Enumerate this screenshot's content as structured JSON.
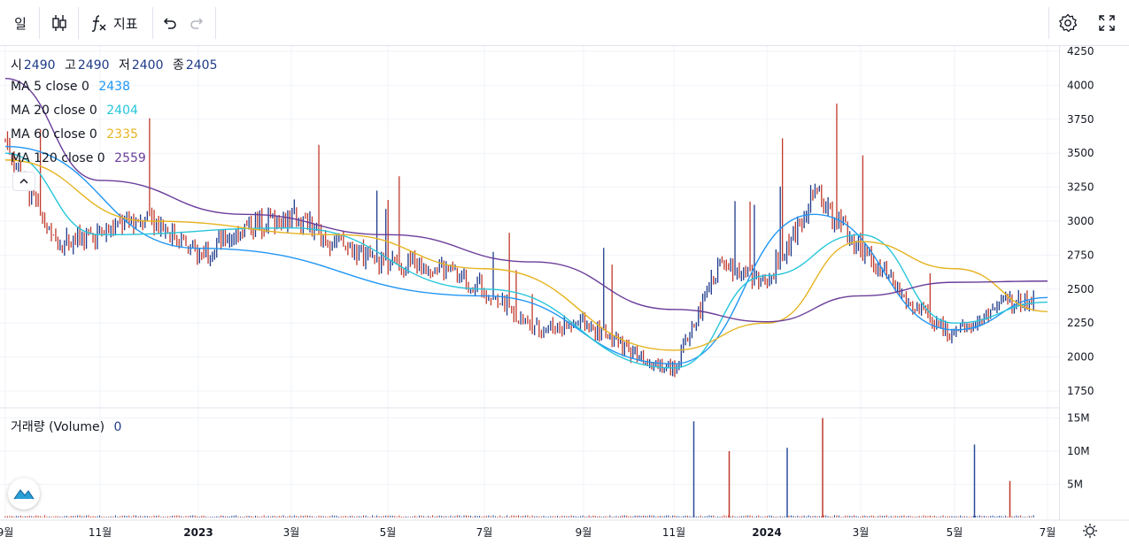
{
  "toolbar": {
    "interval_label": "일",
    "indicators_label": "지표",
    "icons": [
      "candle-style-icon",
      "fx-icon",
      "undo-icon",
      "redo-icon",
      "settings-icon",
      "fullscreen-icon"
    ]
  },
  "legend": {
    "ohlc": {
      "o_label": "시",
      "o": "2490",
      "h_label": "고",
      "h": "2490",
      "l_label": "저",
      "l": "2400",
      "c_label": "종",
      "c": "2405"
    },
    "ma": [
      {
        "label": "MA 5 close 0",
        "value": "2438",
        "color": "#2196f3"
      },
      {
        "label": "MA 20 close 0",
        "value": "2404",
        "color": "#26c6da"
      },
      {
        "label": "MA 60 close 0",
        "value": "2335",
        "color": "#e6b422"
      },
      {
        "label": "MA 120 close 0",
        "value": "2559",
        "color": "#6a3d9a"
      }
    ],
    "volume": {
      "label": "거래량 (Volume)",
      "value": "0"
    }
  },
  "chart_data": {
    "type": "candlestick",
    "price_axis": {
      "ticks": [
        1750,
        2000,
        2250,
        2500,
        2750,
        3000,
        3250,
        3500,
        3750,
        4000,
        4250
      ],
      "range": [
        1580,
        4300
      ]
    },
    "volume_axis": {
      "ticks": [
        "5M",
        "10M",
        "15M"
      ],
      "tick_values": [
        5,
        10,
        15
      ],
      "unit": "M",
      "range": [
        0,
        16
      ]
    },
    "time_axis": [
      "9월",
      "11월",
      "2023",
      "3월",
      "5월",
      "7월",
      "9월",
      "11월",
      "2024",
      "3월",
      "5월",
      "7월"
    ],
    "time_range": [
      "2022-09",
      "2024-07"
    ],
    "close_path": [
      [
        "2022-09",
        3600
      ],
      [
        "2022-10",
        2850
      ],
      [
        "2022-11",
        2900
      ],
      [
        "2022-12",
        3050
      ],
      [
        "2023-01",
        2750
      ],
      [
        "2023-02",
        2950
      ],
      [
        "2023-03",
        3050
      ],
      [
        "2023-04",
        2820
      ],
      [
        "2023-05",
        2700
      ],
      [
        "2023-06",
        2680
      ],
      [
        "2023-07",
        2500
      ],
      [
        "2023-08",
        2200
      ],
      [
        "2023-09",
        2250
      ],
      [
        "2023-10",
        2050
      ],
      [
        "2023-11",
        1900
      ],
      [
        "2023-12",
        2700
      ],
      [
        "2024-01",
        2550
      ],
      [
        "2024-02",
        3200
      ],
      [
        "2024-03",
        2800
      ],
      [
        "2024-04",
        2400
      ],
      [
        "2024-05",
        2150
      ],
      [
        "2024-06",
        2400
      ],
      [
        "2024-07",
        2420
      ]
    ],
    "moving_averages": [
      {
        "name": "MA 5",
        "color": "#2196f3",
        "points": [
          [
            "2022-09",
            3550
          ],
          [
            "2023-01",
            2800
          ],
          [
            "2023-07",
            2450
          ],
          [
            "2023-11",
            1950
          ],
          [
            "2024-02",
            3050
          ],
          [
            "2024-05",
            2200
          ],
          [
            "2024-07",
            2438
          ]
        ]
      },
      {
        "name": "MA 20",
        "color": "#26c6da",
        "points": [
          [
            "2022-09",
            3500
          ],
          [
            "2022-11",
            2900
          ],
          [
            "2023-03",
            2950
          ],
          [
            "2023-07",
            2500
          ],
          [
            "2023-11",
            1920
          ],
          [
            "2024-01",
            2600
          ],
          [
            "2024-03",
            2900
          ],
          [
            "2024-05",
            2250
          ],
          [
            "2024-07",
            2404
          ]
        ]
      },
      {
        "name": "MA 60",
        "color": "#e6b422",
        "points": [
          [
            "2022-09",
            3450
          ],
          [
            "2022-12",
            3000
          ],
          [
            "2023-04",
            2900
          ],
          [
            "2023-07",
            2650
          ],
          [
            "2023-11",
            2050
          ],
          [
            "2024-01",
            2250
          ],
          [
            "2024-03",
            2850
          ],
          [
            "2024-05",
            2650
          ],
          [
            "2024-07",
            2335
          ]
        ]
      },
      {
        "name": "MA 120",
        "color": "#6a3d9a",
        "points": [
          [
            "2022-09",
            4050
          ],
          [
            "2022-11",
            3300
          ],
          [
            "2023-02",
            3050
          ],
          [
            "2023-05",
            2900
          ],
          [
            "2023-08",
            2700
          ],
          [
            "2023-11",
            2350
          ],
          [
            "2024-01",
            2260
          ],
          [
            "2024-03",
            2450
          ],
          [
            "2024-05",
            2550
          ],
          [
            "2024-07",
            2559
          ]
        ]
      }
    ],
    "volume_spikes": [
      {
        "date": "2023-12",
        "value": 14.5
      },
      {
        "date": "2023-12",
        "value": 10
      },
      {
        "date": "2024-02",
        "value": 10.5
      },
      {
        "date": "2024-02",
        "value": 15
      },
      {
        "date": "2024-06",
        "value": 11
      },
      {
        "date": "2024-06",
        "value": 5.5
      }
    ],
    "colors": {
      "up": "#26a69a",
      "down": "#ef5350",
      "candle_up": "#1e3a8a",
      "candle_down": "#c0392b"
    }
  }
}
